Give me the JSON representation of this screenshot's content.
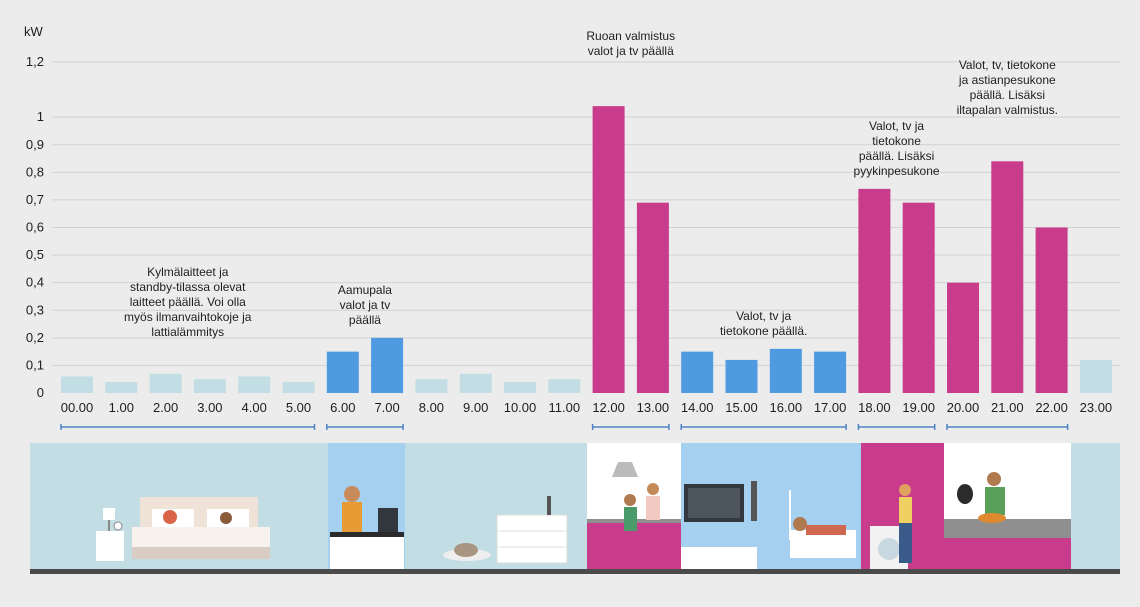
{
  "colors": {
    "background": "#ececec",
    "grid": "#d2d2d2",
    "low": "#c3dde4",
    "morning": "#4f9ae0",
    "high": "#c93c8c",
    "bracket": "#4d83c3",
    "floor": "#4a4a4a"
  },
  "chart_data": {
    "type": "bar",
    "ylabel": "kW",
    "ylim": [
      0,
      1.2
    ],
    "grid": true,
    "yticks": [
      "0",
      "0,1",
      "0,2",
      "0,3",
      "0,4",
      "0,5",
      "0,6",
      "0,7",
      "0,8",
      "0,9",
      "1",
      "1,2"
    ],
    "categories": [
      "00.00",
      "1.00",
      "2.00",
      "3.00",
      "4.00",
      "5.00",
      "6.00",
      "7.00",
      "8.00",
      "9.00",
      "10.00",
      "11.00",
      "12.00",
      "13.00",
      "14.00",
      "15.00",
      "16.00",
      "17.00",
      "18.00",
      "19.00",
      "20.00",
      "21.00",
      "22.00",
      "23.00"
    ],
    "values": [
      0.06,
      0.04,
      0.07,
      0.05,
      0.06,
      0.04,
      0.15,
      0.2,
      0.05,
      0.07,
      0.04,
      0.05,
      1.04,
      0.69,
      0.15,
      0.12,
      0.16,
      0.15,
      0.74,
      0.69,
      0.4,
      0.84,
      0.6,
      0.12
    ],
    "bar_groups": [
      "low",
      "low",
      "low",
      "low",
      "low",
      "low",
      "morning",
      "morning",
      "low",
      "low",
      "low",
      "low",
      "high",
      "high",
      "morning",
      "morning",
      "morning",
      "morning",
      "high",
      "high",
      "high",
      "high",
      "high",
      "low"
    ],
    "annotations": [
      {
        "lines": [
          "Kylmälaitteet ja",
          "standby-tilassa olevat",
          "laitteet päällä. Voi olla",
          "myös ilmanvaihtokoje ja",
          "lattialämmitys"
        ],
        "hours": [
          0,
          5
        ]
      },
      {
        "lines": [
          "Aamupala",
          "valot ja tv",
          "päällä"
        ],
        "hours": [
          6,
          7
        ]
      },
      {
        "lines": [
          "Ruoan valmistus",
          "valot ja tv päällä"
        ],
        "hours": [
          12,
          13
        ]
      },
      {
        "lines": [
          "Valot, tv ja",
          "tietokone päällä."
        ],
        "hours": [
          14,
          17
        ]
      },
      {
        "lines": [
          "Valot, tv ja",
          "tietokone",
          "päällä. Lisäksi",
          "pyykinpesukone"
        ],
        "hours": [
          18,
          19
        ]
      },
      {
        "lines": [
          "Valot, tv, tietokone",
          "ja astianpesukone",
          "päällä. Lisäksi",
          "iltapalan valmistus."
        ],
        "hours": [
          20,
          22
        ]
      }
    ]
  },
  "scenes": [
    {
      "name": "sleeping",
      "bg": "#c3dde4"
    },
    {
      "name": "breakfast",
      "bg": "#a6d0f0"
    },
    {
      "name": "cat-resting",
      "bg": "#c3dde4"
    },
    {
      "name": "cooking-together",
      "bg": "#ffffff"
    },
    {
      "name": "watching-tv",
      "bg": "#a6d0f0"
    },
    {
      "name": "laundry",
      "bg": "#c93c8c"
    },
    {
      "name": "evening-cooking",
      "bg": "#ffffff"
    },
    {
      "name": "night",
      "bg": "#c3dde4"
    }
  ]
}
